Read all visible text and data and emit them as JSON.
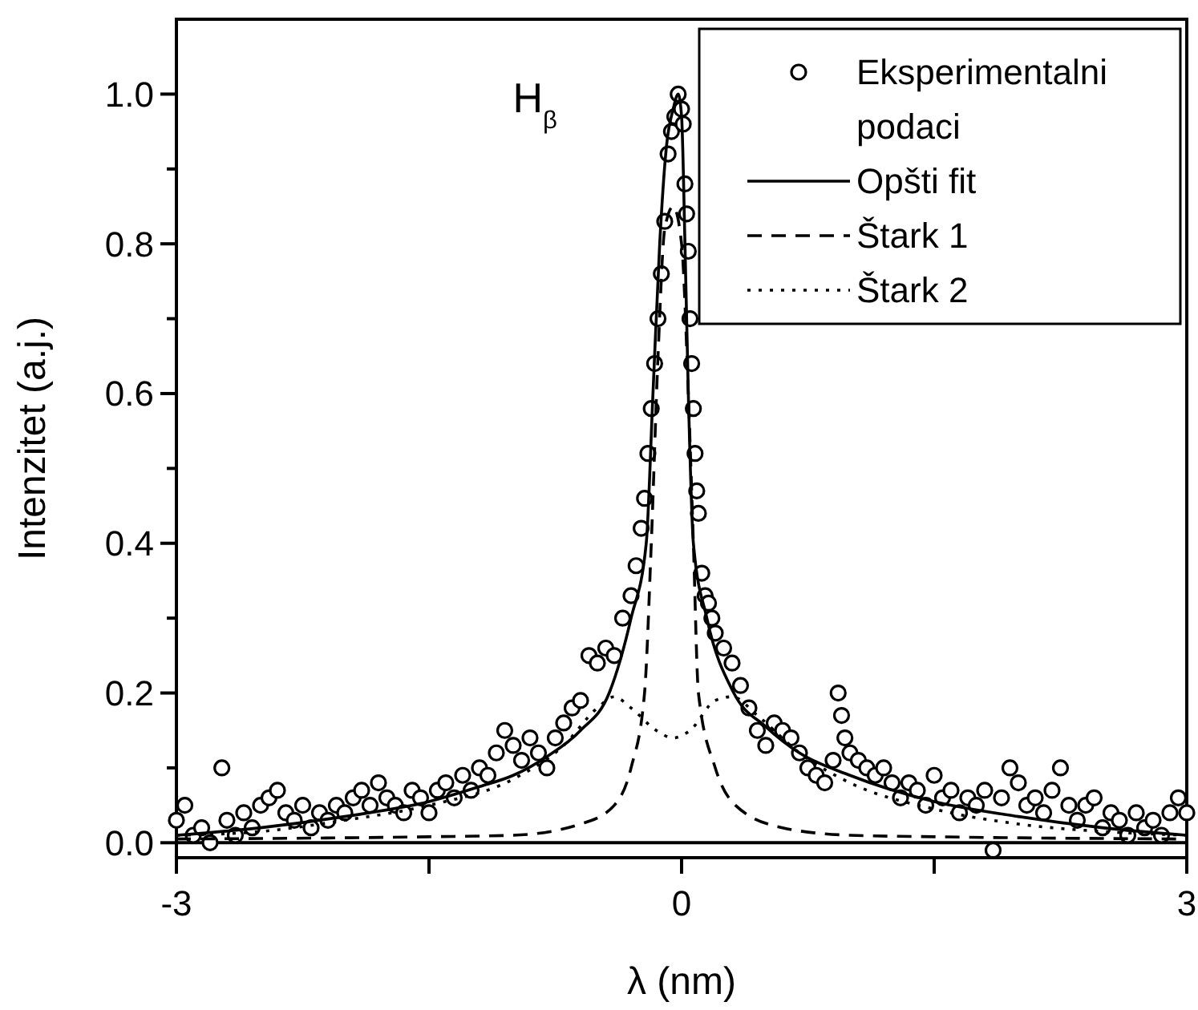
{
  "chart_data": {
    "type": "line",
    "xlabel": "λ (nm)",
    "ylabel": "Intenzitet (a.j.)",
    "xlim": [
      -3,
      3
    ],
    "xticks": [
      -3,
      {
        "value": -1.5,
        "label": null
      },
      0,
      {
        "value": 1.5,
        "label": null
      },
      3
    ],
    "ylim": [
      -0.02,
      1.1
    ],
    "yticks": [
      {
        "value": 0,
        "label": "0.0"
      },
      {
        "value": 0.1,
        "label": null
      },
      0.2,
      {
        "value": 0.3,
        "label": null
      },
      0.4,
      {
        "value": 0.5,
        "label": null
      },
      0.6,
      {
        "value": 0.7,
        "label": null
      },
      0.8,
      {
        "value": 0.9,
        "label": null
      },
      {
        "value": 1,
        "label": "1.0"
      }
    ],
    "grid": false,
    "legend": "top right",
    "ref_lines": [
      {
        "axis": "y",
        "value": 0,
        "label": null,
        "color": "#000000",
        "line_style": "solid"
      }
    ],
    "annotations": [
      "H$_{β}$"
    ],
    "series": [
      {
        "name": "Eksperimentalni podaci",
        "type": "scatter",
        "marker": "circle",
        "color": "#000000",
        "x": [
          -3.0,
          -2.95,
          -2.9,
          -2.85,
          -2.8,
          -2.73,
          -2.7,
          -2.65,
          -2.6,
          -2.55,
          -2.5,
          -2.45,
          -2.4,
          -2.35,
          -2.3,
          -2.25,
          -2.2,
          -2.15,
          -2.1,
          -2.05,
          -2.0,
          -1.95,
          -1.9,
          -1.85,
          -1.8,
          -1.75,
          -1.7,
          -1.65,
          -1.6,
          -1.55,
          -1.5,
          -1.45,
          -1.4,
          -1.35,
          -1.3,
          -1.25,
          -1.2,
          -1.15,
          -1.1,
          -1.05,
          -1.0,
          -0.95,
          -0.9,
          -0.85,
          -0.8,
          -0.75,
          -0.7,
          -0.65,
          -0.6,
          -0.55,
          -0.5,
          -0.45,
          -0.4,
          -0.35,
          -0.3,
          -0.27,
          -0.24,
          -0.22,
          -0.2,
          -0.18,
          -0.16,
          -0.14,
          -0.12,
          -0.1,
          -0.08,
          -0.06,
          -0.04,
          -0.02,
          0.0,
          0.01,
          0.02,
          0.03,
          0.04,
          0.05,
          0.06,
          0.07,
          0.08,
          0.09,
          0.1,
          0.12,
          0.14,
          0.16,
          0.18,
          0.2,
          0.25,
          0.3,
          0.35,
          0.4,
          0.45,
          0.5,
          0.55,
          0.6,
          0.65,
          0.7,
          0.75,
          0.8,
          0.85,
          0.9,
          0.93,
          0.95,
          0.97,
          1.0,
          1.05,
          1.1,
          1.15,
          1.2,
          1.25,
          1.3,
          1.35,
          1.4,
          1.45,
          1.5,
          1.55,
          1.6,
          1.65,
          1.7,
          1.75,
          1.8,
          1.85,
          1.9,
          1.95,
          2.0,
          2.05,
          2.1,
          2.15,
          2.2,
          2.25,
          2.3,
          2.35,
          2.4,
          2.45,
          2.5,
          2.55,
          2.6,
          2.65,
          2.7,
          2.75,
          2.8,
          2.85,
          2.9,
          2.95,
          3.0
        ],
        "values": [
          0.03,
          0.05,
          0.01,
          0.02,
          0.0,
          0.1,
          0.03,
          0.01,
          0.04,
          0.02,
          0.05,
          0.06,
          0.07,
          0.04,
          0.03,
          0.05,
          0.02,
          0.04,
          0.03,
          0.05,
          0.04,
          0.06,
          0.07,
          0.05,
          0.08,
          0.06,
          0.05,
          0.04,
          0.07,
          0.06,
          0.04,
          0.07,
          0.08,
          0.06,
          0.09,
          0.07,
          0.1,
          0.09,
          0.12,
          0.15,
          0.13,
          0.11,
          0.14,
          0.12,
          0.1,
          0.14,
          0.16,
          0.18,
          0.19,
          0.25,
          0.24,
          0.26,
          0.25,
          0.3,
          0.33,
          0.37,
          0.42,
          0.46,
          0.52,
          0.58,
          0.64,
          0.7,
          0.76,
          0.83,
          0.92,
          0.95,
          0.97,
          1.0,
          0.98,
          0.96,
          0.88,
          0.84,
          0.79,
          0.7,
          0.64,
          0.58,
          0.52,
          0.47,
          0.44,
          0.36,
          0.33,
          0.32,
          0.3,
          0.28,
          0.26,
          0.24,
          0.21,
          0.18,
          0.15,
          0.13,
          0.16,
          0.15,
          0.14,
          0.12,
          0.1,
          0.09,
          0.08,
          0.11,
          0.2,
          0.17,
          0.14,
          0.12,
          0.11,
          0.1,
          0.09,
          0.1,
          0.08,
          0.06,
          0.08,
          0.07,
          0.05,
          0.09,
          0.06,
          0.07,
          0.04,
          0.06,
          0.05,
          0.07,
          -0.01,
          0.06,
          0.1,
          0.08,
          0.05,
          0.06,
          0.04,
          0.07,
          0.1,
          0.05,
          0.03,
          0.05,
          0.06,
          0.02,
          0.04,
          0.03,
          0.01,
          0.04,
          0.02,
          0.03,
          0.01,
          0.04,
          0.06,
          0.04
        ]
      },
      {
        "name": "Opšti fit",
        "type": "line",
        "line_style": "solid",
        "color": "#000000",
        "x": [
          -3,
          -2.5,
          -2,
          -1.5,
          -1.2,
          -1,
          -0.8,
          -0.6,
          -0.43,
          -0.3,
          -0.21,
          -0.17,
          -0.13,
          -0.09,
          -0.05,
          -0.02,
          0,
          0.02,
          0.04,
          0.07,
          0.15,
          0.31,
          0.5,
          0.7,
          1,
          1.5,
          2,
          2.5,
          3
        ],
        "values": [
          0.01,
          0.02,
          0.035,
          0.055,
          0.075,
          0.09,
          0.115,
          0.15,
          0.2,
          0.3,
          0.4,
          0.6,
          0.8,
          0.93,
          0.98,
          1.0,
          0.97,
          0.8,
          0.6,
          0.4,
          0.3,
          0.2,
          0.155,
          0.12,
          0.09,
          0.055,
          0.035,
          0.02,
          0.01
        ]
      },
      {
        "name": "Štark 1",
        "type": "line",
        "line_style": "dashed",
        "color": "#000000",
        "x": [
          -3,
          -1.5,
          -1,
          -0.6,
          -0.4,
          -0.3,
          -0.22,
          -0.18,
          -0.14,
          -0.1,
          -0.05,
          0,
          0.04,
          0.07,
          0.1,
          0.2,
          0.32,
          0.6,
          1,
          1.5,
          3
        ],
        "values": [
          0.005,
          0.008,
          0.01,
          0.025,
          0.05,
          0.1,
          0.2,
          0.4,
          0.65,
          0.82,
          0.85,
          0.8,
          0.6,
          0.4,
          0.2,
          0.1,
          0.05,
          0.02,
          0.01,
          0.008,
          0.005
        ]
      },
      {
        "name": "Štark 2",
        "type": "line",
        "line_style": "dotted",
        "color": "#000000",
        "x": [
          -3,
          -2.5,
          -2,
          -1.5,
          -1,
          -0.7,
          -0.5,
          -0.4,
          -0.3,
          -0.15,
          -0.05,
          0.05,
          0.2,
          0.3,
          0.45,
          0.7,
          1,
          1.5,
          2,
          2.5,
          3
        ],
        "values": [
          0.01,
          0.015,
          0.03,
          0.05,
          0.085,
          0.13,
          0.18,
          0.195,
          0.18,
          0.15,
          0.14,
          0.15,
          0.19,
          0.195,
          0.17,
          0.12,
          0.08,
          0.045,
          0.025,
          0.015,
          0.01
        ]
      }
    ]
  }
}
